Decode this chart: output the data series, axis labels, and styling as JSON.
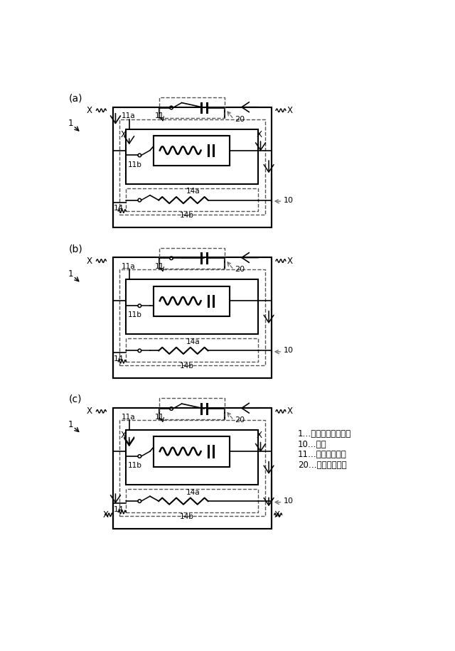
{
  "legend_items": [
    "1…充電制御システム",
    "10…車両",
    "11…車載バッテリ",
    "20…外部充電装置"
  ],
  "panels": [
    "(a)",
    "(b)",
    "(c)"
  ],
  "bg_color": "#ffffff",
  "lc": "#000000",
  "dc": "#777777"
}
